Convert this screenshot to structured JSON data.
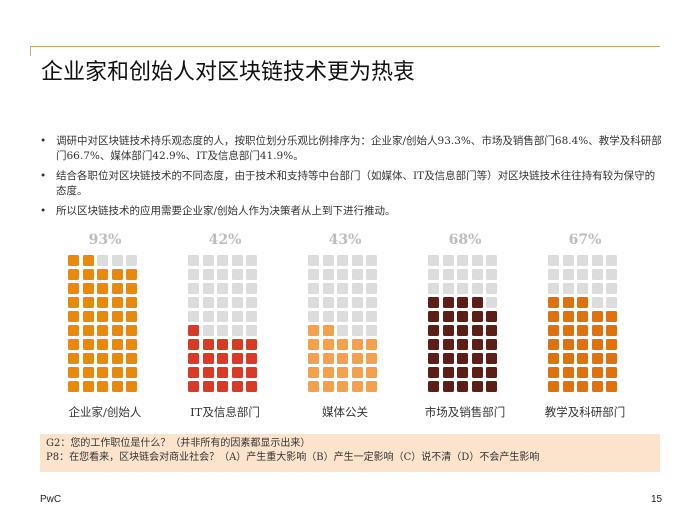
{
  "title": "企业家和创始人对区块链技术更为热衷",
  "bullets": [
    "调研中对区块链技术持乐观态度的人，按职位划分乐观比例排序为：企业家/创始人93.3%、市场及销售部门68.4%、教学及科研部门66.7%、媒体部门42.9%、IT及信息部门41.9%。",
    "结合各职位对区块链技术的不同态度，由于技术和支持等中台部门（如媒体、IT及信息部门等）对区块链技术往往持有较为保守的态度。",
    "所以区块链技术的应用需要企业家/创始人作为决策者从上到下进行推动。"
  ],
  "chart_data": {
    "type": "waffle",
    "grid": {
      "columns": 5,
      "rows": 10
    },
    "categories": [
      "企业家/创始人",
      "IT及信息部门",
      "媒体公关",
      "市场及销售部门",
      "教学及科研部门"
    ],
    "value_labels": [
      "93%",
      "42%",
      "43%",
      "68%",
      "67%"
    ],
    "values": [
      93,
      42,
      43,
      68,
      67
    ],
    "filled_cells": [
      47,
      21,
      22,
      34,
      33
    ],
    "colors": [
      "#e8890c",
      "#d83a26",
      "#f4a04c",
      "#5c1e16",
      "#e0720e"
    ],
    "empty_color": "#dcdcdc"
  },
  "note": {
    "line1": "G2：您的工作职位是什么？（并非所有的因素都显示出来）",
    "line2": "P8：在您看来，区块链会对商业社会？（A）产生重大影响（B）产生一定影响（C）说不清（D）不会产生影响"
  },
  "footer": {
    "brand": "PwC",
    "page": "15"
  }
}
